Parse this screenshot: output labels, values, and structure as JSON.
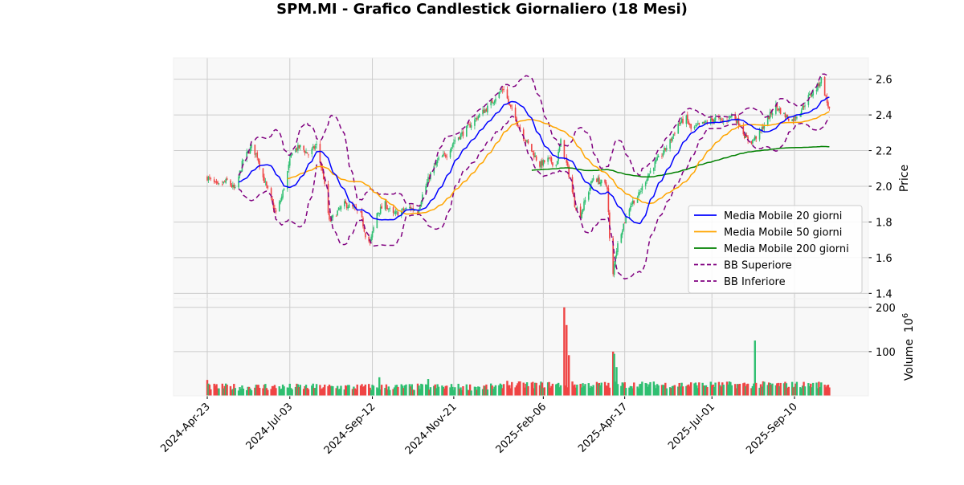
{
  "chart_data": {
    "type": "candlestick",
    "title": "SPM.MI - Grafico Candlestick Giornaliero (18 Mesi)",
    "price_panel": {
      "ylabel": "Price",
      "ylim": [
        1.37,
        2.72
      ],
      "yticks": [
        1.4,
        1.6,
        1.8,
        2.0,
        2.2,
        2.4,
        2.6
      ],
      "ytick_labels": [
        "1.4",
        "1.6",
        "1.8",
        "2.0",
        "2.2",
        "2.4",
        "2.6"
      ],
      "grid": true,
      "legend_placement": "center-right"
    },
    "volume_panel": {
      "ylabel": "Volume",
      "yscale_exponent_label": "10^6",
      "ylim": [
        0,
        205
      ],
      "yticks": [
        100,
        200
      ],
      "ytick_labels": [
        "100",
        "200"
      ],
      "grid": true
    },
    "x_axis": {
      "date_range": [
        "2024-04-23",
        "2025-10-10"
      ],
      "tick_dates": [
        "2024-04-23",
        "2024-07-03",
        "2024-09-12",
        "2024-11-21",
        "2025-02-06",
        "2025-04-17",
        "2025-07-01",
        "2025-09-10"
      ],
      "tick_labels": [
        "2024-Apr-23",
        "2024-Jul-03",
        "2024-Sep-12",
        "2024-Nov-21",
        "2025-Feb-06",
        "2025-Apr-17",
        "2025-Jul-01",
        "2025-Sep-10"
      ]
    },
    "colors": {
      "up": "#2fbf71",
      "down": "#ef4444",
      "ma20": "#0000ff",
      "ma50": "#ffa500",
      "ma200": "#008000",
      "bb": "#800080",
      "grid": "#cccccc",
      "panel_bg": "#f8f8f8"
    },
    "legend": [
      {
        "label": "Media Mobile 20 giorni",
        "color": "#0000ff",
        "style": "solid"
      },
      {
        "label": "Media Mobile 50 giorni",
        "color": "#ffa500",
        "style": "solid"
      },
      {
        "label": "Media Mobile 200 giorni",
        "color": "#008000",
        "style": "solid"
      },
      {
        "label": "BB Superiore",
        "color": "#800080",
        "style": "dashed"
      },
      {
        "label": "BB Inferiore",
        "color": "#800080",
        "style": "dashed"
      }
    ],
    "close_anchors": [
      [
        "2024-04-23",
        2.05
      ],
      [
        "2024-05-02",
        2.0
      ],
      [
        "2024-05-10",
        2.03
      ],
      [
        "2024-05-17",
        1.98
      ],
      [
        "2024-05-24",
        2.15
      ],
      [
        "2024-05-31",
        2.22
      ],
      [
        "2024-06-05",
        2.17
      ],
      [
        "2024-06-10",
        2.05
      ],
      [
        "2024-06-17",
        1.92
      ],
      [
        "2024-06-21",
        1.85
      ],
      [
        "2024-06-26",
        1.94
      ],
      [
        "2024-07-01",
        2.08
      ],
      [
        "2024-07-05",
        2.2
      ],
      [
        "2024-07-12",
        2.22
      ],
      [
        "2024-07-19",
        2.18
      ],
      [
        "2024-07-26",
        2.23
      ],
      [
        "2024-08-01",
        2.05
      ],
      [
        "2024-08-06",
        1.8
      ],
      [
        "2024-08-12",
        1.85
      ],
      [
        "2024-08-19",
        1.9
      ],
      [
        "2024-08-26",
        1.88
      ],
      [
        "2024-09-02",
        1.84
      ],
      [
        "2024-09-06",
        1.73
      ],
      [
        "2024-09-10",
        1.68
      ],
      [
        "2024-09-16",
        1.85
      ],
      [
        "2024-09-23",
        1.9
      ],
      [
        "2024-09-30",
        1.84
      ],
      [
        "2024-10-07",
        1.86
      ],
      [
        "2024-10-14",
        1.88
      ],
      [
        "2024-10-21",
        1.86
      ],
      [
        "2024-10-25",
        1.95
      ],
      [
        "2024-11-01",
        2.07
      ],
      [
        "2024-11-08",
        2.15
      ],
      [
        "2024-11-15",
        2.18
      ],
      [
        "2024-11-22",
        2.26
      ],
      [
        "2024-11-29",
        2.3
      ],
      [
        "2024-12-06",
        2.35
      ],
      [
        "2024-12-13",
        2.4
      ],
      [
        "2024-12-20",
        2.44
      ],
      [
        "2024-12-27",
        2.5
      ],
      [
        "2025-01-03",
        2.55
      ],
      [
        "2025-01-08",
        2.45
      ],
      [
        "2025-01-13",
        2.38
      ],
      [
        "2025-01-20",
        2.28
      ],
      [
        "2025-01-27",
        2.2
      ],
      [
        "2025-02-03",
        2.12
      ],
      [
        "2025-02-10",
        2.15
      ],
      [
        "2025-02-17",
        2.12
      ],
      [
        "2025-02-21",
        2.25
      ],
      [
        "2025-02-27",
        2.1
      ],
      [
        "2025-03-05",
        1.9
      ],
      [
        "2025-03-10",
        1.84
      ],
      [
        "2025-03-14",
        1.92
      ],
      [
        "2025-03-21",
        2.05
      ],
      [
        "2025-03-28",
        2.02
      ],
      [
        "2025-04-02",
        2.0
      ],
      [
        "2025-04-04",
        1.7
      ],
      [
        "2025-04-07",
        1.5
      ],
      [
        "2025-04-09",
        1.62
      ],
      [
        "2025-04-14",
        1.75
      ],
      [
        "2025-04-22",
        1.9
      ],
      [
        "2025-04-29",
        1.95
      ],
      [
        "2025-05-06",
        2.05
      ],
      [
        "2025-05-12",
        2.12
      ],
      [
        "2025-05-19",
        2.18
      ],
      [
        "2025-05-26",
        2.25
      ],
      [
        "2025-06-02",
        2.35
      ],
      [
        "2025-06-09",
        2.38
      ],
      [
        "2025-06-13",
        2.32
      ],
      [
        "2025-06-20",
        2.34
      ],
      [
        "2025-06-27",
        2.36
      ],
      [
        "2025-07-04",
        2.38
      ],
      [
        "2025-07-11",
        2.36
      ],
      [
        "2025-07-18",
        2.4
      ],
      [
        "2025-07-25",
        2.35
      ],
      [
        "2025-07-30",
        2.27
      ],
      [
        "2025-08-04",
        2.25
      ],
      [
        "2025-08-11",
        2.3
      ],
      [
        "2025-08-18",
        2.38
      ],
      [
        "2025-08-25",
        2.45
      ],
      [
        "2025-09-01",
        2.4
      ],
      [
        "2025-09-08",
        2.37
      ],
      [
        "2025-09-15",
        2.42
      ],
      [
        "2025-09-22",
        2.5
      ],
      [
        "2025-09-29",
        2.55
      ],
      [
        "2025-10-03",
        2.6
      ],
      [
        "2025-10-08",
        2.47
      ],
      [
        "2025-10-10",
        2.43
      ]
    ],
    "volume_spikes": [
      [
        "2024-04-23",
        36
      ],
      [
        "2024-06-12",
        27
      ],
      [
        "2024-09-18",
        42
      ],
      [
        "2024-10-30",
        38
      ],
      [
        "2025-01-06",
        34
      ],
      [
        "2025-02-24",
        200
      ],
      [
        "2025-02-26",
        160
      ],
      [
        "2025-02-28",
        92
      ],
      [
        "2025-04-07",
        100
      ],
      [
        "2025-04-08",
        95
      ],
      [
        "2025-04-10",
        65
      ],
      [
        "2025-08-07",
        125
      ]
    ]
  }
}
